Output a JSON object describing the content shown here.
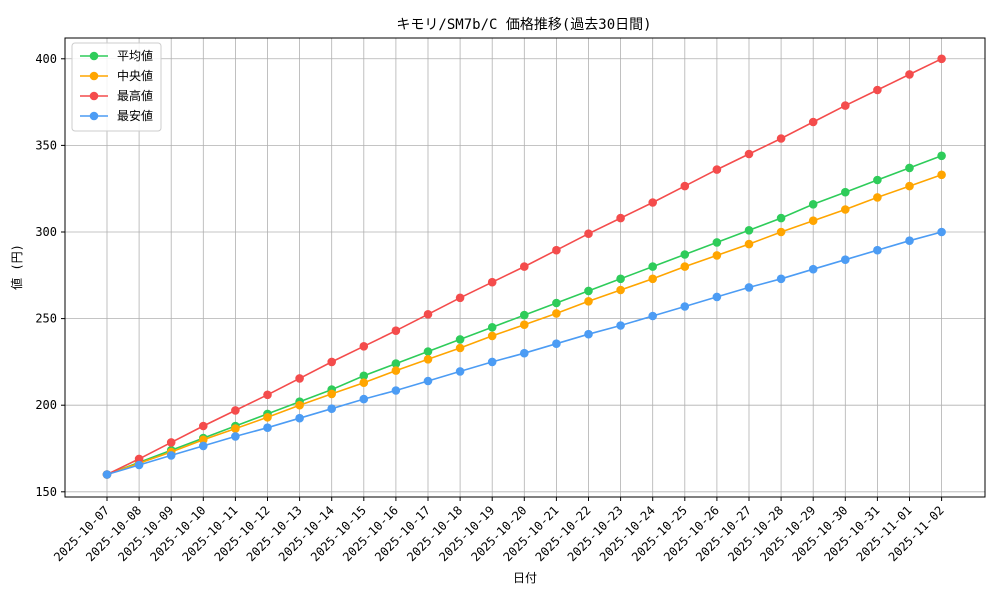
{
  "chart_data": {
    "type": "line",
    "title": "キモリ/SM7b/C 価格推移(過去30日間)",
    "xlabel": "日付",
    "ylabel": "値 (円)",
    "ylim": [
      147,
      412
    ],
    "yticks": [
      150,
      200,
      250,
      300,
      350,
      400
    ],
    "grid": true,
    "legend_position": "top-left",
    "x": [
      "2025-10-07",
      "2025-10-08",
      "2025-10-09",
      "2025-10-10",
      "2025-10-11",
      "2025-10-12",
      "2025-10-13",
      "2025-10-14",
      "2025-10-15",
      "2025-10-16",
      "2025-10-17",
      "2025-10-18",
      "2025-10-19",
      "2025-10-20",
      "2025-10-21",
      "2025-10-22",
      "2025-10-23",
      "2025-10-24",
      "2025-10-25",
      "2025-10-26",
      "2025-10-27",
      "2025-10-28",
      "2025-10-29",
      "2025-10-30",
      "2025-10-31",
      "2025-11-01",
      "2025-11-02"
    ],
    "series": [
      {
        "name": "平均値",
        "color": "#2ecc5a",
        "values": [
          160,
          167,
          174,
          181,
          188,
          195,
          202,
          209,
          217,
          224,
          231,
          238,
          245,
          252,
          259,
          266,
          273,
          280,
          287,
          294,
          301,
          308,
          316,
          323,
          330,
          337,
          344
        ]
      },
      {
        "name": "中央値",
        "color": "#ffa500",
        "values": [
          160,
          166.5,
          173,
          180,
          186.5,
          193,
          200,
          206.5,
          213,
          220,
          226.5,
          233,
          240,
          246.5,
          253,
          260,
          266.5,
          273,
          280,
          286.5,
          293,
          300,
          306.5,
          313,
          320,
          326.5,
          333
        ]
      },
      {
        "name": "最高値",
        "color": "#f44c4c",
        "values": [
          160,
          169,
          178.5,
          188,
          197,
          206,
          215.5,
          225,
          234,
          243,
          252.5,
          262,
          271,
          280,
          289.5,
          299,
          308,
          317,
          326.5,
          336,
          345,
          354,
          363.5,
          373,
          382,
          391,
          400
        ]
      },
      {
        "name": "最安値",
        "color": "#4c9cf4",
        "values": [
          160,
          165.5,
          171,
          176.5,
          182,
          187,
          192.5,
          198,
          203.5,
          208.5,
          214,
          219.5,
          225,
          230,
          235.5,
          241,
          246,
          251.5,
          257,
          262.5,
          268,
          273,
          278.5,
          284,
          289.5,
          295,
          300
        ]
      }
    ]
  }
}
